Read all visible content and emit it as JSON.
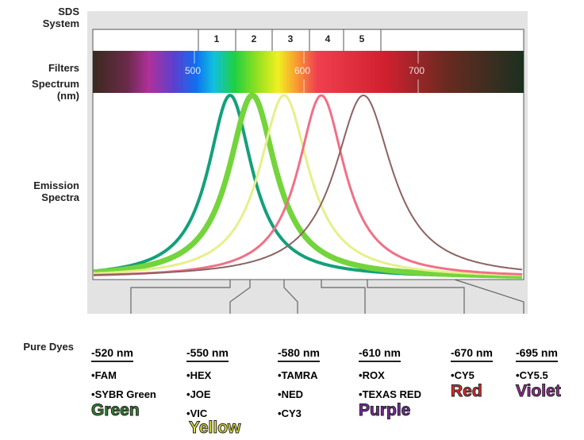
{
  "side_labels": {
    "sds": "SDS System",
    "filters": "Filters",
    "spectrum": "Spectrum (nm)",
    "emission": "Emission Spectra",
    "dyes": "Pure Dyes"
  },
  "filters": [
    "1",
    "2",
    "3",
    "4",
    "5"
  ],
  "spectrum_labels": [
    "500",
    "600",
    "700"
  ],
  "dye_groups": [
    {
      "wavelength": "-520 nm",
      "dyes": [
        "FAM",
        "SYBR Green"
      ],
      "color_name": "Green"
    },
    {
      "wavelength": "-550 nm",
      "dyes": [
        "HEX",
        "JOE",
        "VIC"
      ],
      "color_name": "Yellow"
    },
    {
      "wavelength": "-580 nm",
      "dyes": [
        "TAMRA",
        "NED",
        "CY3"
      ]
    },
    {
      "wavelength": "-610 nm",
      "dyes": [
        "ROX",
        "TEXAS RED"
      ],
      "color_name": "Purple"
    },
    {
      "wavelength": "-670 nm",
      "dyes": [
        "CY5"
      ],
      "color_name": "Red"
    },
    {
      "wavelength": "-695 nm",
      "dyes": [
        "CY5.5"
      ],
      "color_name": "Violet"
    }
  ]
}
